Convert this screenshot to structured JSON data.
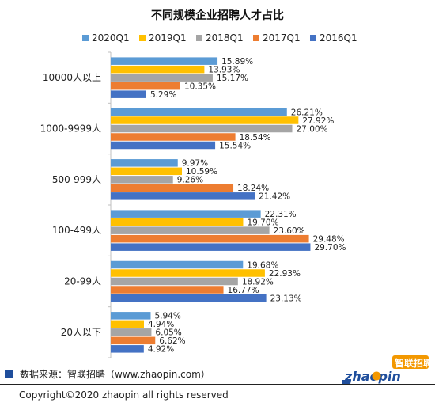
{
  "chart_data": {
    "type": "bar",
    "orientation": "horizontal",
    "title": "不同规模企业招聘人才占比",
    "categories": [
      "10000人以上",
      "1000-9999人",
      "500-999人",
      "100-499人",
      "20-99人",
      "20人以下"
    ],
    "series": [
      {
        "name": "2020Q1",
        "color": "#5b9bd5",
        "values": [
          15.89,
          26.21,
          9.97,
          22.31,
          19.68,
          5.94
        ]
      },
      {
        "name": "2019Q1",
        "color": "#ffc000",
        "values": [
          13.93,
          27.92,
          10.59,
          19.7,
          22.93,
          4.94
        ]
      },
      {
        "name": "2018Q1",
        "color": "#a5a5a5",
        "values": [
          15.17,
          27.0,
          9.26,
          23.6,
          18.92,
          6.05
        ]
      },
      {
        "name": "2017Q1",
        "color": "#ed7d31",
        "values": [
          10.35,
          18.54,
          18.24,
          29.48,
          16.77,
          6.62
        ]
      },
      {
        "name": "2016Q1",
        "color": "#4472c4",
        "values": [
          5.29,
          15.54,
          21.42,
          29.7,
          23.13,
          4.92
        ]
      }
    ],
    "xlim": [
      0,
      32
    ],
    "value_suffix": "%",
    "legend_position": "top",
    "grid": false
  },
  "footer": {
    "source_note": "数据来源：智联招聘（www.zhaopin.com）",
    "copyright": "Copyright©2020 zhaopin all rights reserved"
  },
  "logo": {
    "text_cn": "智联招聘",
    "text_en": "zhaopin.com",
    "brand_color": "#1f4e9c",
    "accent_color": "#f39800"
  }
}
